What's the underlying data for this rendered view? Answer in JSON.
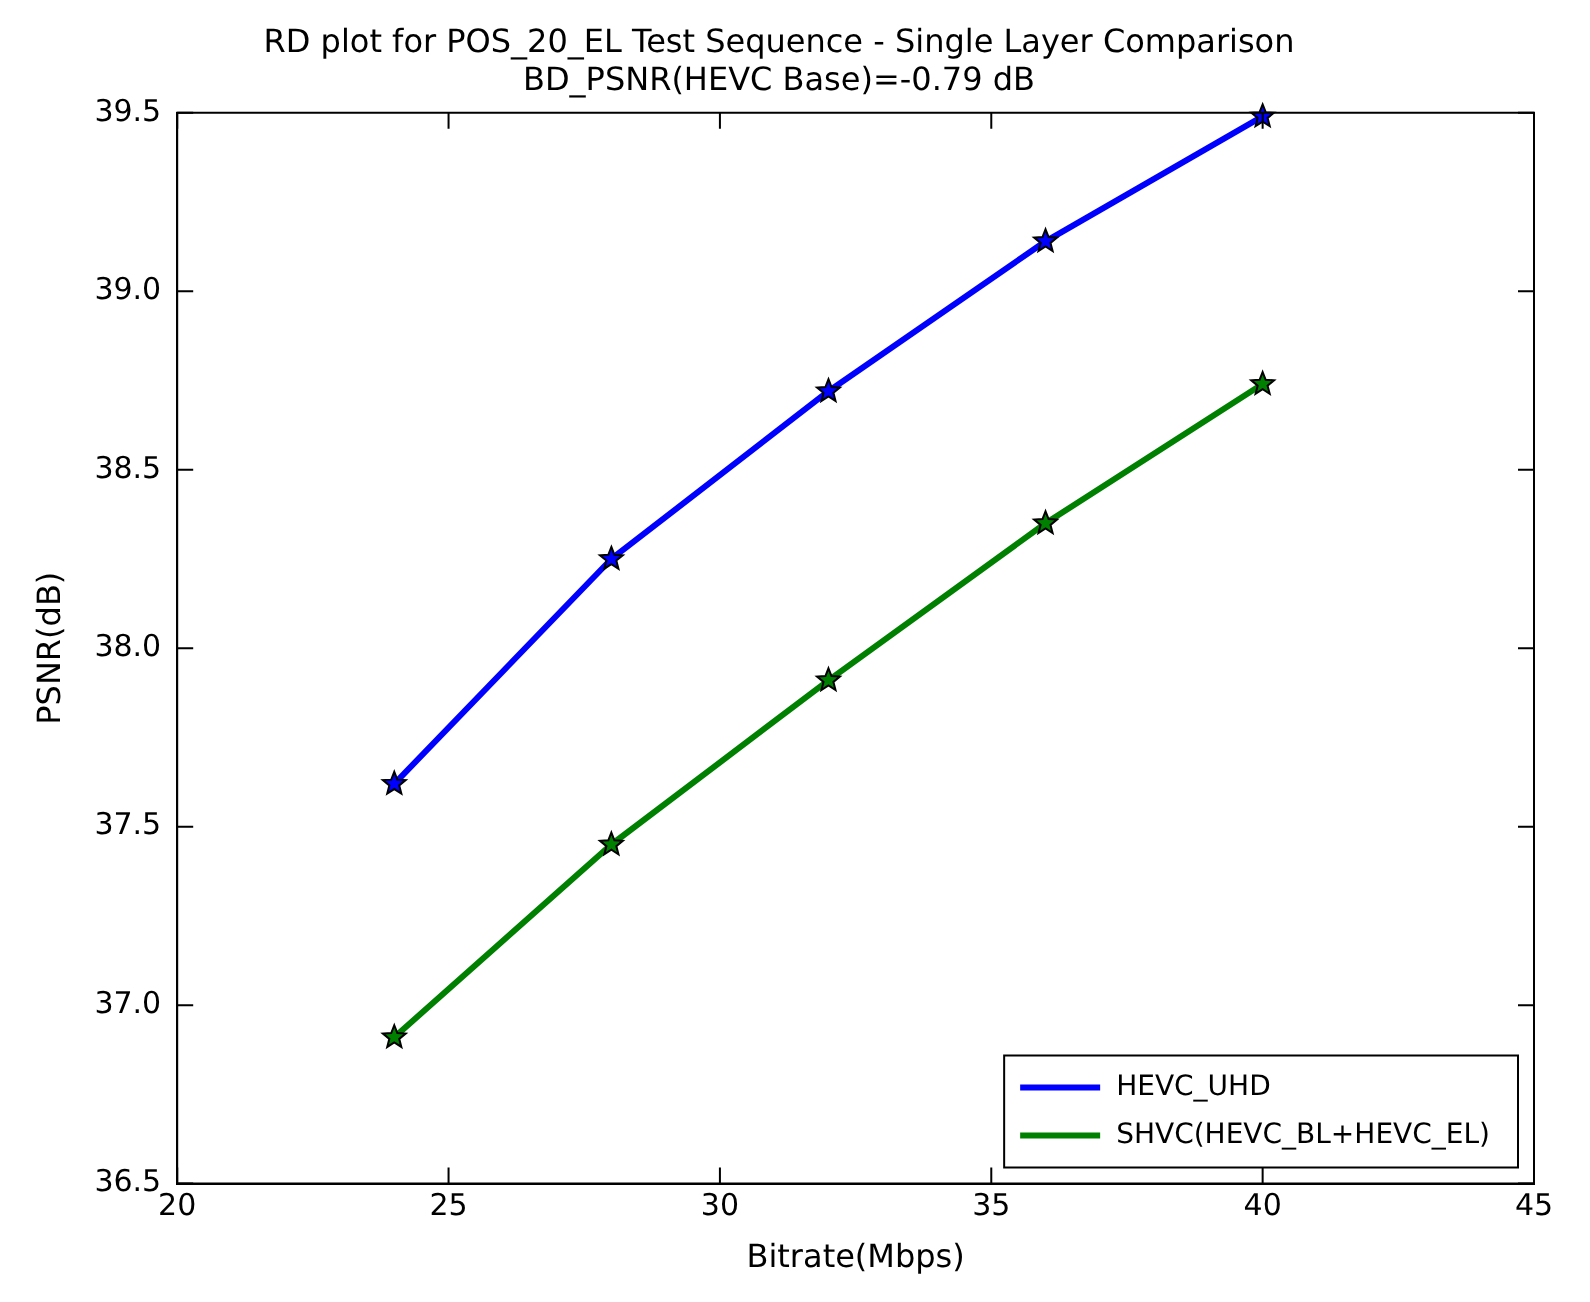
{
  "chart_data": {
    "type": "line",
    "title": "RD plot for POS_20_EL Test Sequence - Single Layer Comparison",
    "subtitle": "BD_PSNR(HEVC Base)=-0.79 dB",
    "xlabel": "Bitrate(Mbps)",
    "ylabel": "PSNR(dB)",
    "x": [
      24,
      28,
      32,
      36,
      40
    ],
    "series": [
      {
        "name": "HEVC_UHD",
        "color": "#0000ff",
        "values": [
          37.62,
          38.25,
          38.72,
          39.14,
          39.49
        ]
      },
      {
        "name": "SHVC(HEVC_BL+HEVC_EL)",
        "color": "#008000",
        "values": [
          36.91,
          37.45,
          37.91,
          38.35,
          38.74
        ]
      }
    ],
    "xlim": [
      20,
      45
    ],
    "xticks": [
      20,
      25,
      30,
      35,
      40,
      45
    ],
    "ylim": [
      36.5,
      39.5
    ],
    "yticks": [
      {
        "value": 36.5,
        "label": "36.5"
      },
      {
        "value": 37,
        "label": "37.0"
      },
      {
        "value": 37.5,
        "label": "37.5"
      },
      {
        "value": 38,
        "label": "38.0"
      },
      {
        "value": 38.5,
        "label": "38.5"
      },
      {
        "value": 39,
        "label": "39.0"
      },
      {
        "value": 39.5,
        "label": "39.5"
      }
    ],
    "grid": false,
    "legend": "bottom right",
    "marker": "star",
    "line_style": "solid"
  }
}
